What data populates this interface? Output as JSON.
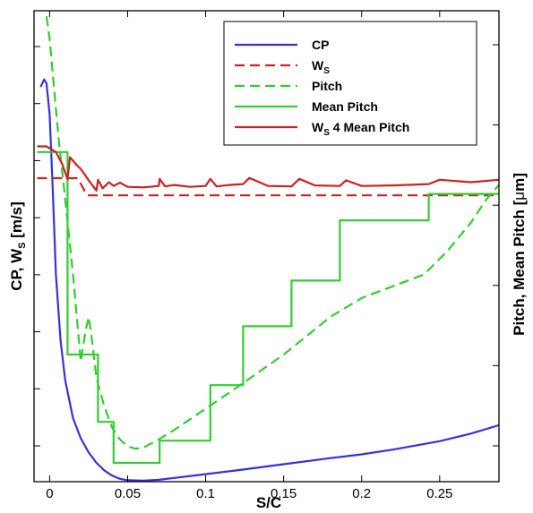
{
  "chart_data": {
    "type": "line",
    "xlabel": "S/C",
    "ylabel_left": "CP, W",
    "ylabel_left_sub": "S",
    "ylabel_left_unit": " [m/s]",
    "ylabel_right": "Pitch, Mean Pitch [",
    "ylabel_right_mu": "μ",
    "ylabel_right_end": "m]",
    "x_ticks": [
      0,
      0.05,
      0.1,
      0.15,
      0.2,
      0.25
    ],
    "x_tick_labels": [
      "0",
      "0.05",
      "0.1",
      "0.15",
      "0.2",
      "0.25"
    ],
    "xlim": [
      -0.01,
      0.288
    ],
    "ylim": [
      0,
      1
    ],
    "left_tick_count": 8,
    "right_tick_count": 6,
    "grid": false,
    "legend_placement": "top-right",
    "legend": [
      {
        "label": "CP",
        "sub": "",
        "after": "",
        "color": "#3333dd",
        "dash": "solid"
      },
      {
        "label": "W",
        "sub": "S",
        "after": "",
        "color": "#cc2222",
        "dash": "dashed"
      },
      {
        "label": "Pitch",
        "sub": "",
        "after": "",
        "color": "#33cc33",
        "dash": "dashed"
      },
      {
        "label": "Mean Pitch",
        "sub": "",
        "after": "",
        "color": "#33cc33",
        "dash": "solid"
      },
      {
        "label": "W",
        "sub": "S",
        "after": " 4 Mean Pitch",
        "color": "#cc2222",
        "dash": "solid"
      }
    ],
    "series": [
      {
        "name": "CP",
        "color": "#3333dd",
        "dash": "solid",
        "x": [
          -0.0058,
          -0.0035,
          -0.002,
          0.0,
          0.002,
          0.004,
          0.007,
          0.01,
          0.015,
          0.02,
          0.025,
          0.03,
          0.035,
          0.04,
          0.045,
          0.05,
          0.06,
          0.07,
          0.08,
          0.1,
          0.12,
          0.15,
          0.18,
          0.2,
          0.22,
          0.25,
          0.27,
          0.288
        ],
        "y": [
          0.838,
          0.854,
          0.846,
          0.78,
          0.62,
          0.44,
          0.3,
          0.215,
          0.135,
          0.092,
          0.062,
          0.04,
          0.024,
          0.013,
          0.006,
          0.003,
          0.002,
          0.004,
          0.008,
          0.016,
          0.024,
          0.037,
          0.05,
          0.058,
          0.068,
          0.086,
          0.102,
          0.12
        ]
      },
      {
        "name": "W",
        "color": "#cc2222",
        "dash": "dashed",
        "x": [
          -0.008,
          0.018,
          0.024,
          0.288
        ],
        "y": [
          0.6445,
          0.6445,
          0.608,
          0.608
        ]
      },
      {
        "name": "Pitch",
        "color": "#33cc33",
        "dash": "dashed",
        "x": [
          -0.004,
          -0.002,
          0.0,
          0.003,
          0.006,
          0.01,
          0.015,
          0.02,
          0.023,
          0.025,
          0.027,
          0.03,
          0.035,
          0.04,
          0.045,
          0.05,
          0.055,
          0.06,
          0.07,
          0.08,
          0.1,
          0.12,
          0.15,
          0.18,
          0.2,
          0.24,
          0.255,
          0.27,
          0.28,
          0.288
        ],
        "y": [
          1.02,
          0.99,
          0.94,
          0.83,
          0.72,
          0.6,
          0.44,
          0.255,
          0.32,
          0.35,
          0.305,
          0.22,
          0.16,
          0.115,
          0.09,
          0.075,
          0.07,
          0.072,
          0.09,
          0.11,
          0.155,
          0.2,
          0.27,
          0.35,
          0.39,
          0.44,
          0.49,
          0.55,
          0.6,
          0.63
        ]
      },
      {
        "name": "Mean Pitch",
        "color": "#33cc33",
        "dash": "solid",
        "x": [
          -0.008,
          0.0115,
          0.0115,
          0.031,
          0.031,
          0.041,
          0.041,
          0.0705,
          0.0705,
          0.103,
          0.103,
          0.124,
          0.124,
          0.155,
          0.155,
          0.186,
          0.186,
          0.243,
          0.243,
          0.288
        ],
        "y": [
          0.7,
          0.7,
          0.27,
          0.27,
          0.127,
          0.127,
          0.04,
          0.04,
          0.087,
          0.087,
          0.205,
          0.205,
          0.33,
          0.33,
          0.427,
          0.427,
          0.555,
          0.555,
          0.611,
          0.611
        ]
      },
      {
        "name": "W 4 Mean Pitch",
        "color": "#cc2222",
        "dash": "solid",
        "x": [
          -0.008,
          -0.002,
          0.004,
          0.008,
          0.0115,
          0.013,
          0.018,
          0.02,
          0.025,
          0.03,
          0.031,
          0.034,
          0.038,
          0.041,
          0.045,
          0.05,
          0.06,
          0.07,
          0.0705,
          0.074,
          0.08,
          0.09,
          0.1,
          0.103,
          0.107,
          0.115,
          0.124,
          0.128,
          0.14,
          0.155,
          0.16,
          0.17,
          0.186,
          0.19,
          0.2,
          0.22,
          0.243,
          0.25,
          0.27,
          0.288
        ],
        "y": [
          0.712,
          0.712,
          0.7,
          0.675,
          0.642,
          0.689,
          0.67,
          0.664,
          0.64,
          0.618,
          0.641,
          0.623,
          0.636,
          0.628,
          0.635,
          0.626,
          0.625,
          0.628,
          0.643,
          0.627,
          0.63,
          0.626,
          0.628,
          0.643,
          0.627,
          0.63,
          0.632,
          0.645,
          0.628,
          0.627,
          0.643,
          0.629,
          0.628,
          0.64,
          0.628,
          0.629,
          0.632,
          0.641,
          0.636,
          0.641
        ]
      }
    ]
  }
}
